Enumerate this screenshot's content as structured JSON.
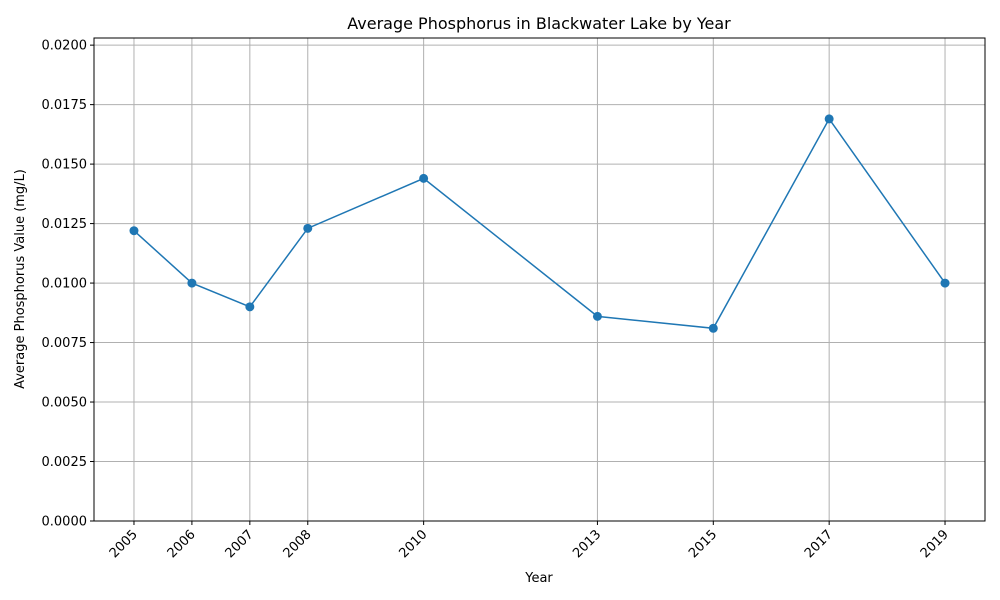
{
  "chart_data": {
    "type": "line",
    "title": "Average Phosphorus in Blackwater Lake by Year",
    "xlabel": "Year",
    "ylabel": "Average Phosphorus Value (mg/L)",
    "x": [
      2005,
      2006,
      2007,
      2008,
      2010,
      2013,
      2015,
      2017,
      2019
    ],
    "x_tick_labels": [
      "2005",
      "2006",
      "2007",
      "2008",
      "2010",
      "2013",
      "2015",
      "2017",
      "2019"
    ],
    "series": [
      {
        "values": [
          0.0122,
          0.01,
          0.009,
          0.0123,
          0.0144,
          0.0086,
          0.0081,
          0.0169,
          0.01
        ]
      }
    ],
    "xlim": [
      2004.31,
      2019.69
    ],
    "ylim": [
      0,
      0.0203
    ],
    "y_ticks": [
      0.0,
      0.0025,
      0.005,
      0.0075,
      0.01,
      0.0125,
      0.015,
      0.0175,
      0.02
    ],
    "y_tick_labels": [
      "0.0000",
      "0.0025",
      "0.0050",
      "0.0075",
      "0.0100",
      "0.0125",
      "0.0150",
      "0.0175",
      "0.0200"
    ],
    "grid": true,
    "line_color": "#1f77b4",
    "marker": "circle"
  }
}
